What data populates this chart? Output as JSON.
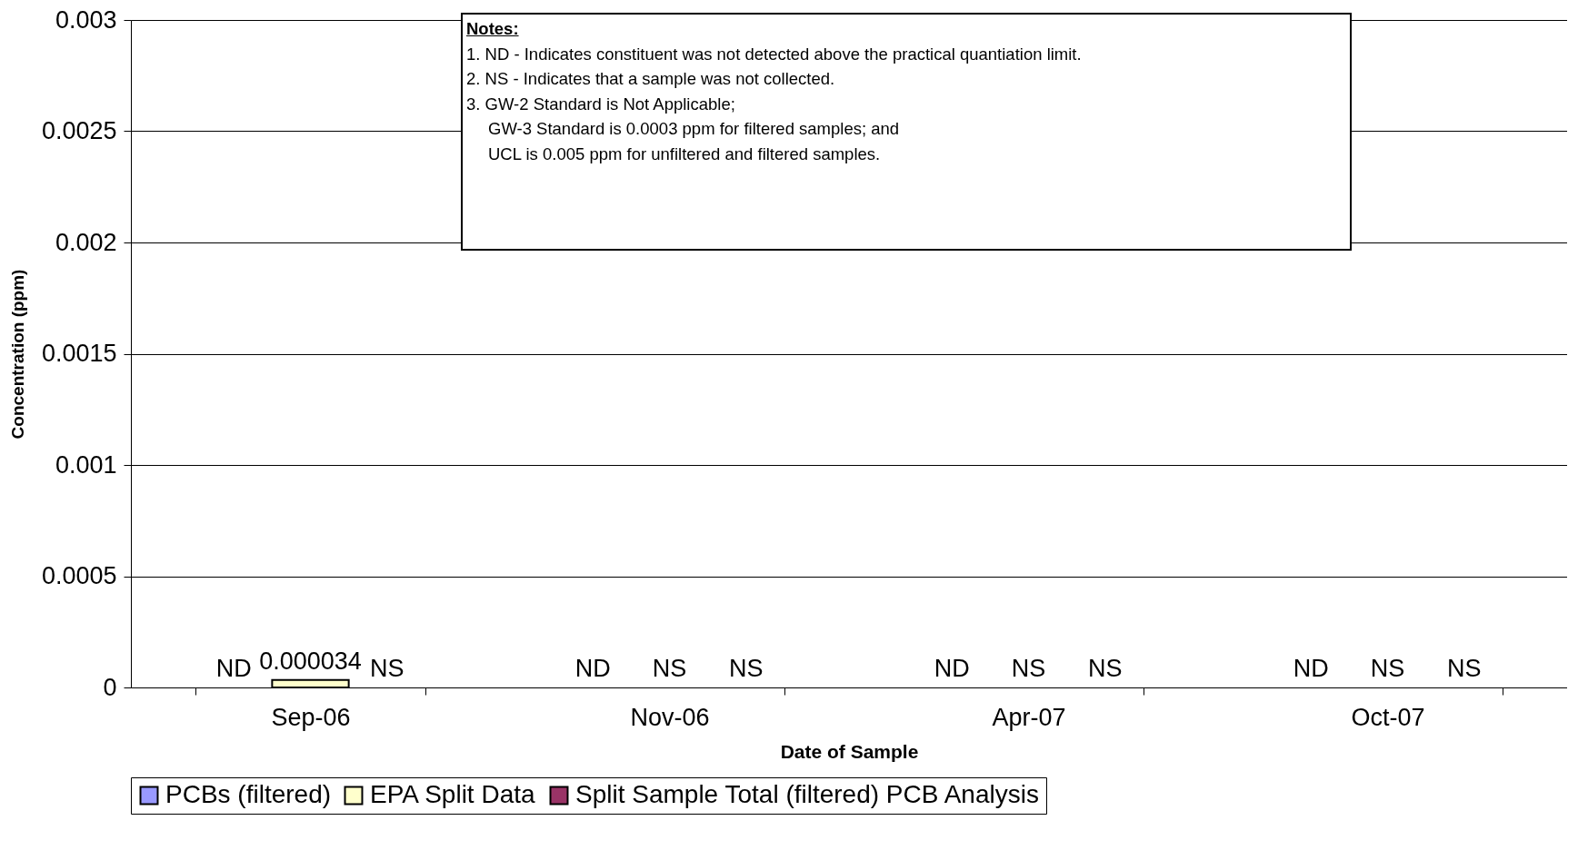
{
  "chart_data": {
    "type": "bar",
    "xlabel": "Date of Sample",
    "ylabel": "Concentration (ppm)",
    "categories": [
      "Sep-06",
      "Nov-06",
      "Apr-07",
      "Oct-07"
    ],
    "series": [
      {
        "name": "PCBs (filtered)",
        "color": "#9999ff",
        "values": [
          null,
          null,
          null,
          null
        ],
        "value_labels": [
          "ND",
          "ND",
          "ND",
          "ND"
        ]
      },
      {
        "name": "EPA Split Data",
        "color": "#ffffcc",
        "values": [
          3.4e-05,
          null,
          null,
          null
        ],
        "value_labels": [
          "0.000034",
          "NS",
          "NS",
          "NS"
        ]
      },
      {
        "name": "Split Sample Total (filtered) PCB Analysis",
        "color": "#993366",
        "values": [
          null,
          null,
          null,
          null
        ],
        "value_labels": [
          "NS",
          "NS",
          "NS",
          "NS"
        ]
      }
    ],
    "ylim": [
      0,
      0.003
    ],
    "yticks": [
      0,
      0.0005,
      0.001,
      0.0015,
      0.002,
      0.0025,
      0.003
    ],
    "grid": "y",
    "legend": "bottom",
    "annotations": [
      "Notes:",
      "1. ND - Indicates constituent was not detected above the practical quantiation limit.",
      "2. NS - Indicates that a sample was not collected.",
      "3. GW-2 Standard is Not Applicable;",
      "GW-3 Standard is 0.0003 ppm for filtered samples; and",
      "UCL is 0.005 ppm for unfiltered and filtered samples."
    ]
  }
}
